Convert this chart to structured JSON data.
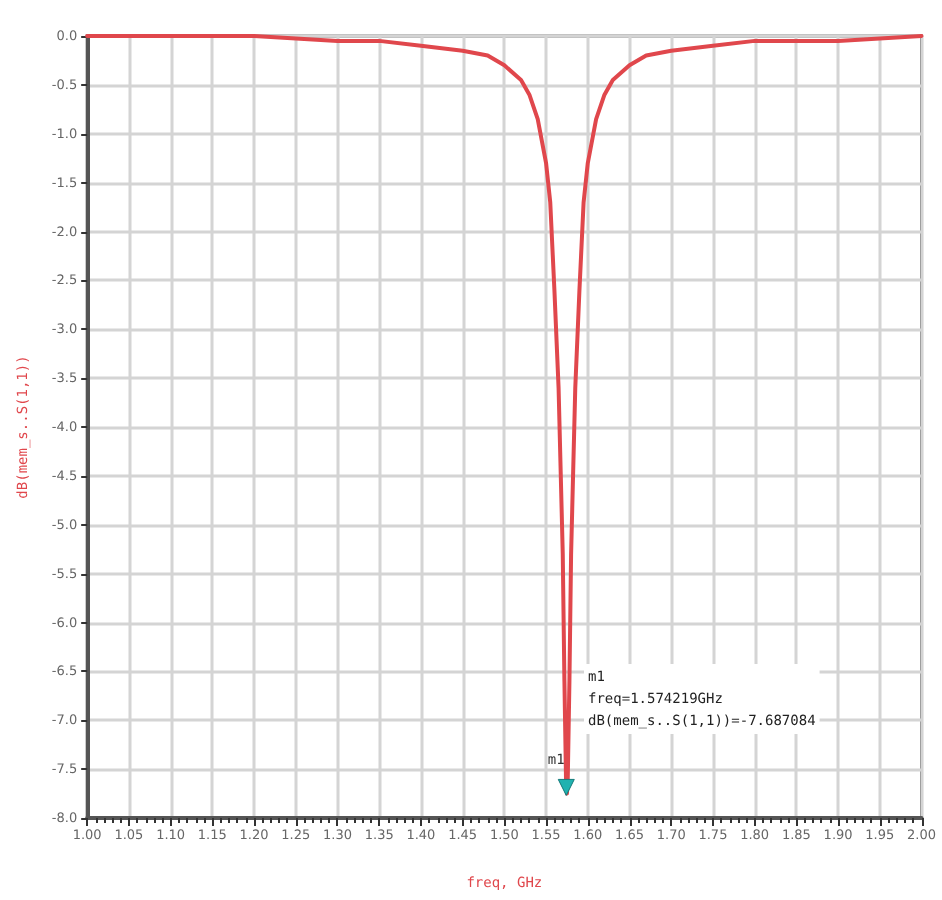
{
  "chart_data": {
    "type": "line",
    "xlabel": "freq, GHz",
    "ylabel": "dB(mem_s..S(1,1))",
    "x": [
      1.0,
      1.1,
      1.2,
      1.3,
      1.35,
      1.4,
      1.45,
      1.48,
      1.5,
      1.52,
      1.53,
      1.54,
      1.55,
      1.555,
      1.56,
      1.565,
      1.57,
      1.572,
      1.574,
      1.575,
      1.576,
      1.578,
      1.58,
      1.585,
      1.59,
      1.595,
      1.6,
      1.61,
      1.62,
      1.63,
      1.65,
      1.67,
      1.7,
      1.75,
      1.8,
      1.9,
      2.0
    ],
    "series": [
      {
        "color": "#e0474c",
        "values": [
          0,
          0,
          0,
          -0.05,
          -0.05,
          -0.1,
          -0.15,
          -0.2,
          -0.3,
          -0.45,
          -0.6,
          -0.85,
          -1.3,
          -1.7,
          -2.6,
          -3.6,
          -5.3,
          -6.6,
          -7.65,
          -7.75,
          -7.6,
          -6.6,
          -5.3,
          -3.6,
          -2.6,
          -1.7,
          -1.3,
          -0.85,
          -0.6,
          -0.45,
          -0.3,
          -0.2,
          -0.15,
          -0.1,
          -0.05,
          -0.05,
          0
        ]
      }
    ],
    "xlim": [
      1.0,
      2.0
    ],
    "xticks": [
      {
        "value": 1.0,
        "label": "1.00"
      },
      1.05,
      {
        "value": 1.1,
        "label": "1.10"
      },
      1.15,
      {
        "value": 1.2,
        "label": "1.20"
      },
      1.25,
      {
        "value": 1.3,
        "label": "1.30"
      },
      1.35,
      {
        "value": 1.4,
        "label": "1.40"
      },
      1.45,
      {
        "value": 1.5,
        "label": "1.50"
      },
      1.55,
      {
        "value": 1.6,
        "label": "1.60"
      },
      1.65,
      {
        "value": 1.7,
        "label": "1.70"
      },
      1.75,
      {
        "value": 1.8,
        "label": "1.80"
      },
      1.85,
      {
        "value": 1.9,
        "label": "1.90"
      },
      1.95,
      {
        "value": 2.0,
        "label": "2.00"
      }
    ],
    "ylim": [
      -8,
      0
    ],
    "yticks": [
      {
        "value": -8,
        "label": "-8.0"
      },
      -7.5,
      {
        "value": -7,
        "label": "-7.0"
      },
      -6.5,
      {
        "value": -6,
        "label": "-6.0"
      },
      -5.5,
      {
        "value": -5,
        "label": "-5.0"
      },
      -4.5,
      {
        "value": -4,
        "label": "-4.0"
      },
      -3.5,
      {
        "value": -3,
        "label": "-3.0"
      },
      -2.5,
      {
        "value": -2,
        "label": "-2.0"
      },
      -1.5,
      {
        "value": -1,
        "label": "-1.0"
      },
      -0.5,
      {
        "value": 0,
        "label": "0.0"
      }
    ],
    "grid": true,
    "annotations": [
      {
        "text": "m1",
        "x": 1.574219,
        "y": -7.687084
      },
      "m1\nfreq=1.574219GHz\ndB(mem_s..S(1,1))=-7.687084"
    ]
  }
}
